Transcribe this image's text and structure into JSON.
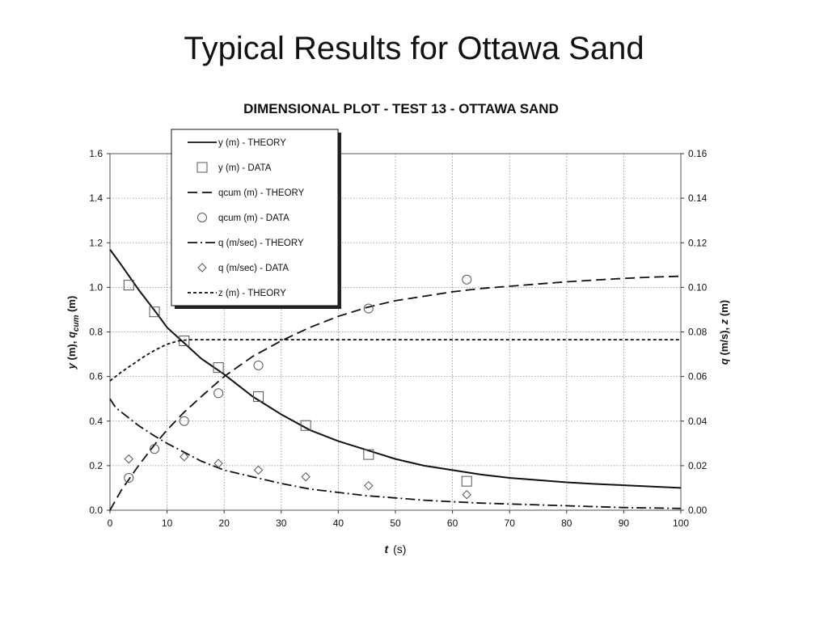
{
  "slide": {
    "title": "Typical Results for Ottawa Sand"
  },
  "chart_data": {
    "type": "line",
    "title": "DIMENSIONAL PLOT - TEST 13 - OTTAWA SAND",
    "xlabel": "t",
    "xlabel_unit": "(s)",
    "ylabel_left": [
      "y",
      " (m),  ",
      "q",
      "cum",
      " (m)"
    ],
    "ylabel_right": [
      "q",
      " (m/s), ",
      "z",
      " (m)"
    ],
    "xlim": [
      0,
      100
    ],
    "ylim_left": [
      0,
      1.6
    ],
    "ylim_right": [
      0,
      0.16
    ],
    "xticks": [
      0,
      10,
      20,
      30,
      40,
      50,
      60,
      70,
      80,
      90,
      100
    ],
    "yticks_left": [
      "0.0",
      "0.2",
      "0.4",
      "0.6",
      "0.8",
      "1.0",
      "1.2",
      "1.4",
      "1.6"
    ],
    "yticks_right": [
      "0.00",
      "0.02",
      "0.04",
      "0.06",
      "0.08",
      "0.10",
      "0.12",
      "0.14",
      "0.16"
    ],
    "grid": "dotted",
    "legend_position": "top-left",
    "series": [
      {
        "name": "y (m) - THEORY",
        "axis": "left",
        "kind": "line",
        "style": "solid",
        "x": [
          0,
          2,
          5,
          8,
          10,
          13,
          16,
          20,
          25,
          30,
          35,
          40,
          45,
          50,
          55,
          60,
          65,
          70,
          75,
          80,
          85,
          90,
          95,
          100
        ],
        "y": [
          1.17,
          1.1,
          0.99,
          0.89,
          0.82,
          0.75,
          0.68,
          0.61,
          0.51,
          0.43,
          0.36,
          0.31,
          0.27,
          0.23,
          0.2,
          0.18,
          0.16,
          0.145,
          0.135,
          0.125,
          0.118,
          0.112,
          0.106,
          0.1
        ]
      },
      {
        "name": "y (m) - DATA",
        "axis": "left",
        "kind": "marker",
        "marker": "square",
        "x": [
          3.3,
          7.8,
          13,
          19,
          26,
          34.3,
          45.3,
          62.5
        ],
        "y": [
          1.01,
          0.89,
          0.76,
          0.64,
          0.51,
          0.38,
          0.25,
          0.13
        ]
      },
      {
        "name": "qcum (m) - THEORY",
        "axis": "left",
        "kind": "line",
        "style": "dash",
        "x": [
          0,
          2,
          5,
          8,
          10,
          13,
          16,
          20,
          25,
          30,
          35,
          40,
          45,
          50,
          55,
          60,
          65,
          70,
          75,
          80,
          85,
          90,
          95,
          100
        ],
        "y": [
          0,
          0.09,
          0.2,
          0.3,
          0.36,
          0.44,
          0.51,
          0.6,
          0.69,
          0.76,
          0.82,
          0.87,
          0.91,
          0.94,
          0.96,
          0.98,
          0.995,
          1.005,
          1.015,
          1.025,
          1.033,
          1.04,
          1.046,
          1.05
        ]
      },
      {
        "name": "qcum (m) - DATA",
        "axis": "left",
        "kind": "marker",
        "marker": "circle",
        "x": [
          3.3,
          7.8,
          13,
          19,
          26,
          45.3,
          62.5
        ],
        "y": [
          0.145,
          0.275,
          0.4,
          0.525,
          0.65,
          0.905,
          1.035
        ]
      },
      {
        "name": "q (m/sec) - THEORY",
        "axis": "right",
        "kind": "line",
        "style": "dashdot",
        "x": [
          0,
          1,
          3,
          5,
          8,
          10,
          13,
          16,
          20,
          25,
          30,
          35,
          40,
          45,
          50,
          55,
          60,
          65,
          70,
          75,
          80,
          85,
          90,
          95,
          100
        ],
        "y": [
          0.05,
          0.046,
          0.042,
          0.038,
          0.033,
          0.03,
          0.026,
          0.022,
          0.018,
          0.015,
          0.012,
          0.0095,
          0.008,
          0.0065,
          0.0055,
          0.0045,
          0.0038,
          0.0032,
          0.0028,
          0.0024,
          0.002,
          0.0016,
          0.0012,
          0.001,
          0.0008
        ]
      },
      {
        "name": "q (m/sec) - DATA",
        "axis": "right",
        "kind": "marker",
        "marker": "diamond",
        "x": [
          3.3,
          13,
          19,
          26,
          34.3,
          45.3,
          62.5
        ],
        "y": [
          0.023,
          0.024,
          0.021,
          0.018,
          0.015,
          0.011,
          0.007
        ]
      },
      {
        "name": "z (m) - THEORY",
        "axis": "left",
        "kind": "line",
        "style": "shortdash",
        "x": [
          0,
          2,
          4,
          6,
          8,
          10,
          12,
          14,
          20,
          30,
          40,
          50,
          60,
          70,
          80,
          90,
          100
        ],
        "y": [
          0.58,
          0.62,
          0.655,
          0.69,
          0.72,
          0.745,
          0.76,
          0.765,
          0.765,
          0.765,
          0.765,
          0.765,
          0.765,
          0.765,
          0.765,
          0.765,
          0.765
        ]
      }
    ]
  }
}
